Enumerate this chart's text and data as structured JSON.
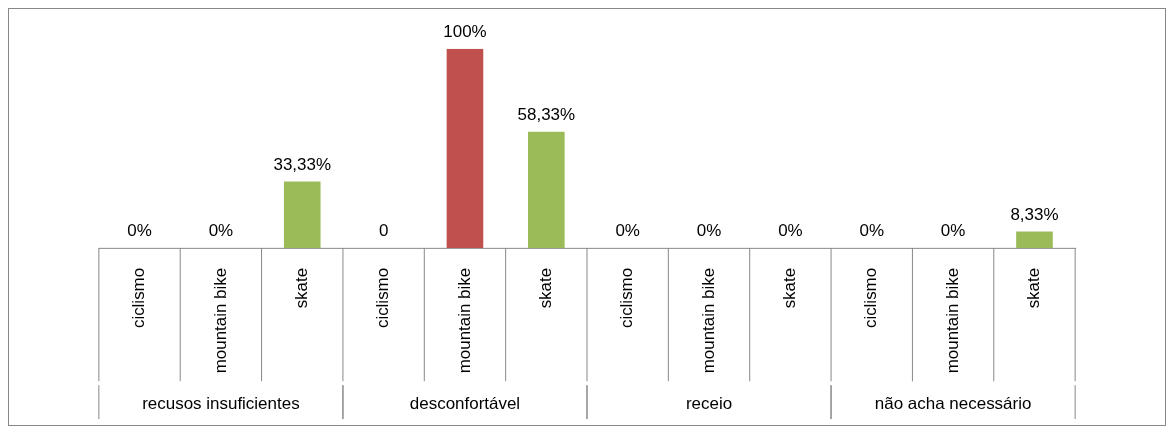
{
  "chart_data": {
    "type": "bar",
    "categories": [
      "ciclismo",
      "mountain bike",
      "skate",
      "ciclismo",
      "mountain bike",
      "skate",
      "ciclismo",
      "mountain bike",
      "skate",
      "ciclismo",
      "mountain bike",
      "skate"
    ],
    "values": [
      0,
      0,
      33.33,
      0,
      100,
      58.33,
      0,
      0,
      0,
      0,
      0,
      8.33
    ],
    "colors": [
      "#4f81bd",
      "#c0504d",
      "#9bbb59",
      "#4f81bd",
      "#c0504d",
      "#9bbb59",
      "#4f81bd",
      "#c0504d",
      "#9bbb59",
      "#4f81bd",
      "#c0504d",
      "#9bbb59"
    ],
    "value_labels": [
      "0%",
      "0%",
      "33,33%",
      "0",
      "100%",
      "58,33%",
      "0%",
      "0%",
      "0%",
      "0%",
      "0%",
      "8,33%"
    ],
    "annotations": [
      "recusos insuficientes",
      "desconfortável",
      "receio",
      "não acha necessário"
    ]
  }
}
